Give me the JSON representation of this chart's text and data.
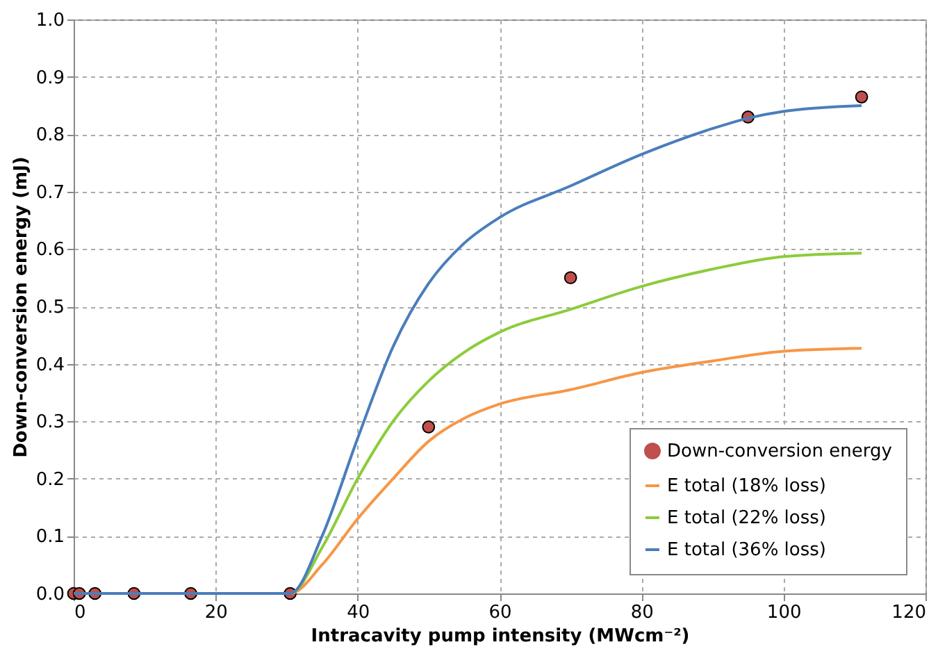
{
  "chart_data": {
    "type": "line",
    "xlabel": "Intracavity pump intensity (MWcm⁻²)",
    "ylabel": "Down-conversion energy (mJ)",
    "xlim": [
      0,
      120
    ],
    "xticks": [
      0,
      20,
      40,
      60,
      80,
      100,
      120
    ],
    "ylim": [
      0,
      1.0
    ],
    "yticks": [
      {
        "value": 0,
        "label": "0.0"
      },
      {
        "value": 0.1,
        "label": "0.1"
      },
      {
        "value": 0.2,
        "label": "0.2"
      },
      {
        "value": 0.3,
        "label": "0.3"
      },
      {
        "value": 0.4,
        "label": "0.4"
      },
      {
        "value": 0.5,
        "label": "0.5"
      },
      {
        "value": 0.6,
        "label": "0.6"
      },
      {
        "value": 0.7,
        "label": "0.7"
      },
      {
        "value": 0.8,
        "label": "0.8"
      },
      {
        "value": 0.9,
        "label": "0.9"
      },
      {
        "value": 1.0,
        "label": "1.0"
      }
    ],
    "grid": true,
    "legend": "bottom right",
    "series": [
      {
        "name": "Down-conversion energy",
        "type": "scatter",
        "marker": "circle",
        "color": "#c0504d",
        "x": [
          0,
          0.8,
          3,
          8.5,
          16.5,
          30.5,
          50,
          70,
          95,
          111
        ],
        "values": [
          0,
          0,
          0,
          0,
          0,
          0,
          0.29,
          0.55,
          0.83,
          0.865
        ]
      },
      {
        "name": "E total (18% loss)",
        "color": "#f79646",
        "x": [
          0,
          16.5,
          30.5,
          35,
          40,
          45,
          50,
          55,
          60,
          70,
          80,
          90,
          100,
          111
        ],
        "values": [
          0,
          0,
          0,
          0.05,
          0.13,
          0.2,
          0.265,
          0.305,
          0.33,
          0.355,
          0.385,
          0.405,
          0.422,
          0.427
        ]
      },
      {
        "name": "E total (22% loss)",
        "color": "#8ccc3c",
        "x": [
          0,
          16.5,
          30.5,
          35,
          40,
          45,
          50,
          55,
          60,
          70,
          80,
          90,
          100,
          111
        ],
        "values": [
          0,
          0,
          0,
          0.08,
          0.2,
          0.3,
          0.37,
          0.42,
          0.455,
          0.495,
          0.535,
          0.565,
          0.587,
          0.593
        ]
      },
      {
        "name": "E total (36% loss)",
        "color": "#4a7ebb",
        "x": [
          0,
          16.5,
          30.5,
          35,
          40,
          45,
          50,
          55,
          60,
          70,
          80,
          90,
          95,
          100,
          111
        ],
        "values": [
          0,
          0,
          0,
          0.1,
          0.27,
          0.43,
          0.54,
          0.61,
          0.655,
          0.71,
          0.765,
          0.81,
          0.828,
          0.84,
          0.85
        ]
      }
    ]
  }
}
